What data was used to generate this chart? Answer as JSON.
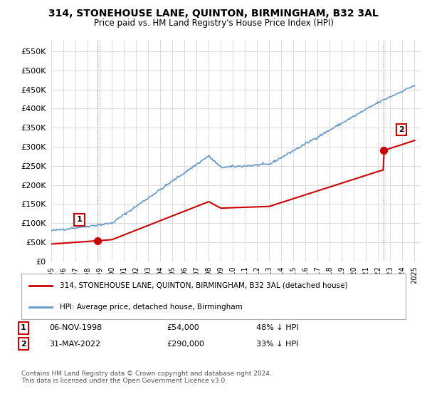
{
  "title": "314, STONEHOUSE LANE, QUINTON, BIRMINGHAM, B32 3AL",
  "subtitle": "Price paid vs. HM Land Registry's House Price Index (HPI)",
  "sale1_date": "06-NOV-1998",
  "sale1_price": 54000,
  "sale1_label": "48% ↓ HPI",
  "sale2_date": "31-MAY-2022",
  "sale2_price": 290000,
  "sale2_label": "33% ↓ HPI",
  "legend_line1": "314, STONEHOUSE LANE, QUINTON, BIRMINGHAM, B32 3AL (detached house)",
  "legend_line2": "HPI: Average price, detached house, Birmingham",
  "footer": "Contains HM Land Registry data © Crown copyright and database right 2024.\nThis data is licensed under the Open Government Licence v3.0.",
  "sale_color": "#cc0000",
  "hpi_color": "#6699cc",
  "ylim": [
    0,
    580000
  ],
  "yticks": [
    0,
    50000,
    100000,
    150000,
    200000,
    250000,
    300000,
    350000,
    400000,
    450000,
    500000,
    550000
  ],
  "background_color": "#ffffff",
  "grid_color": "#dddddd"
}
